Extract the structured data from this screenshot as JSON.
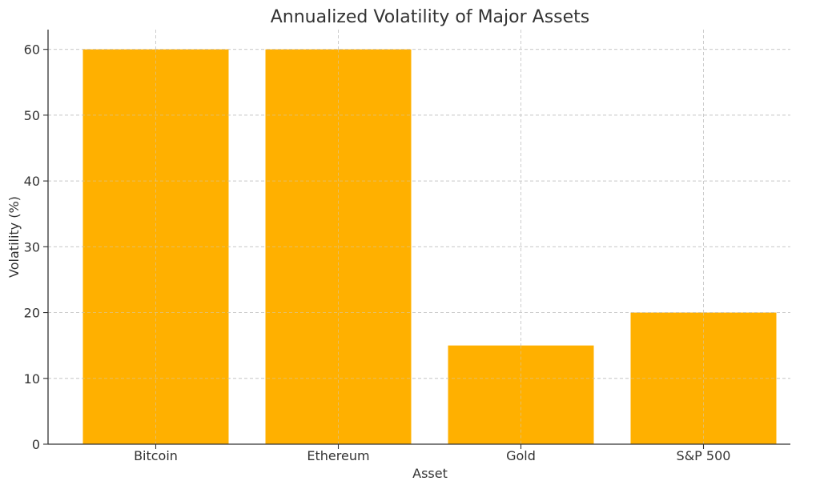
{
  "chart_data": {
    "type": "bar",
    "title": "Annualized Volatility of Major Assets",
    "xlabel": "Asset",
    "ylabel": "Volatility (%)",
    "categories": [
      "Bitcoin",
      "Ethereum",
      "Gold",
      "S&P 500"
    ],
    "values": [
      60,
      60,
      15,
      20
    ],
    "ylim": [
      0,
      63
    ],
    "yticks": [
      0,
      10,
      20,
      30,
      40,
      50,
      60
    ],
    "grid": true,
    "bar_color": "#FFB000"
  }
}
